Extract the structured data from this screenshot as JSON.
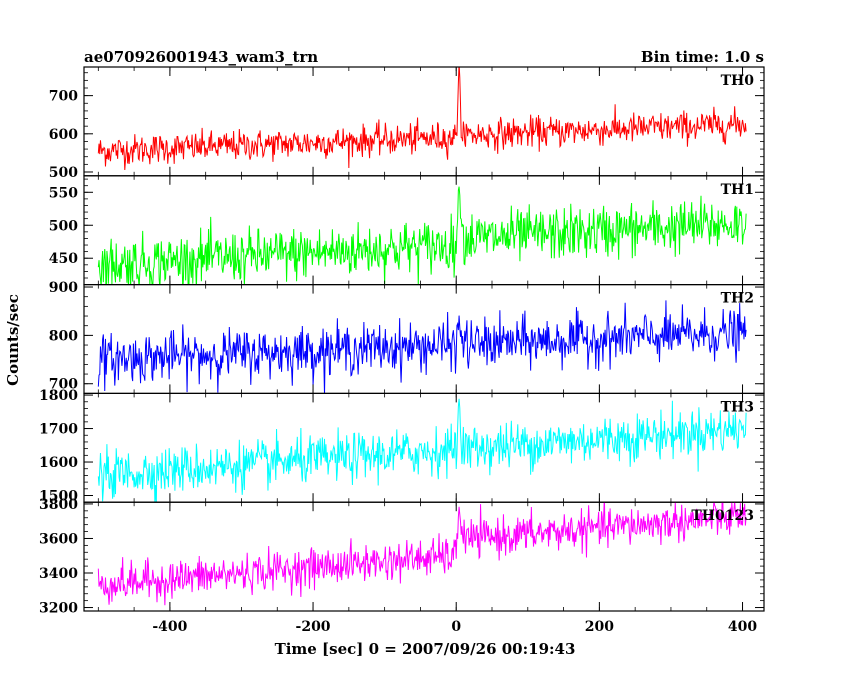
{
  "header": {
    "title": "ae070926001943_wam3_trn",
    "bin_time": "Bin time: 1.0 s"
  },
  "chart_data": {
    "type": "line",
    "xlabel": "Time [sec] 0 = 2007/09/26 00:19:43",
    "ylabel": "Counts/sec",
    "xlim": [
      -520,
      430
    ],
    "x_ticks": [
      -400,
      -200,
      0,
      200,
      400
    ],
    "x_range": [
      -500,
      405
    ],
    "bin_time_sec": 1.0,
    "panels": [
      {
        "name": "TH0",
        "color": "#ff0000",
        "ylim": [
          490,
          775
        ],
        "yticks": [
          500,
          600,
          700
        ],
        "trend_start": 555,
        "trend_end": 620,
        "noise_sd": 20,
        "burst_peak": 775,
        "step_after": 5
      },
      {
        "name": "TH1",
        "color": "#00ff00",
        "ylim": [
          410,
          575
        ],
        "yticks": [
          450,
          500,
          550
        ],
        "trend_start": 440,
        "trend_end": 495,
        "noise_sd": 20,
        "burst_peak": 570,
        "step_after": 8
      },
      {
        "name": "TH2",
        "color": "#0000ff",
        "ylim": [
          680,
          905
        ],
        "yticks": [
          700,
          800,
          900
        ],
        "trend_start": 750,
        "trend_end": 805,
        "noise_sd": 25,
        "burst_peak": 830,
        "step_after": 0
      },
      {
        "name": "TH3",
        "color": "#00ffff",
        "ylim": [
          1480,
          1805
        ],
        "yticks": [
          1500,
          1600,
          1700,
          1800
        ],
        "trend_start": 1560,
        "trend_end": 1700,
        "noise_sd": 35,
        "burst_peak": 1790,
        "step_after": 0
      },
      {
        "name": "TH0123",
        "color": "#ff00ff",
        "ylim": [
          3180,
          3810
        ],
        "yticks": [
          3200,
          3400,
          3600,
          3800
        ],
        "trend_start": 3330,
        "trend_end": 3640,
        "noise_sd": 55,
        "burst_peak": 3800,
        "step_after": 90
      }
    ]
  }
}
